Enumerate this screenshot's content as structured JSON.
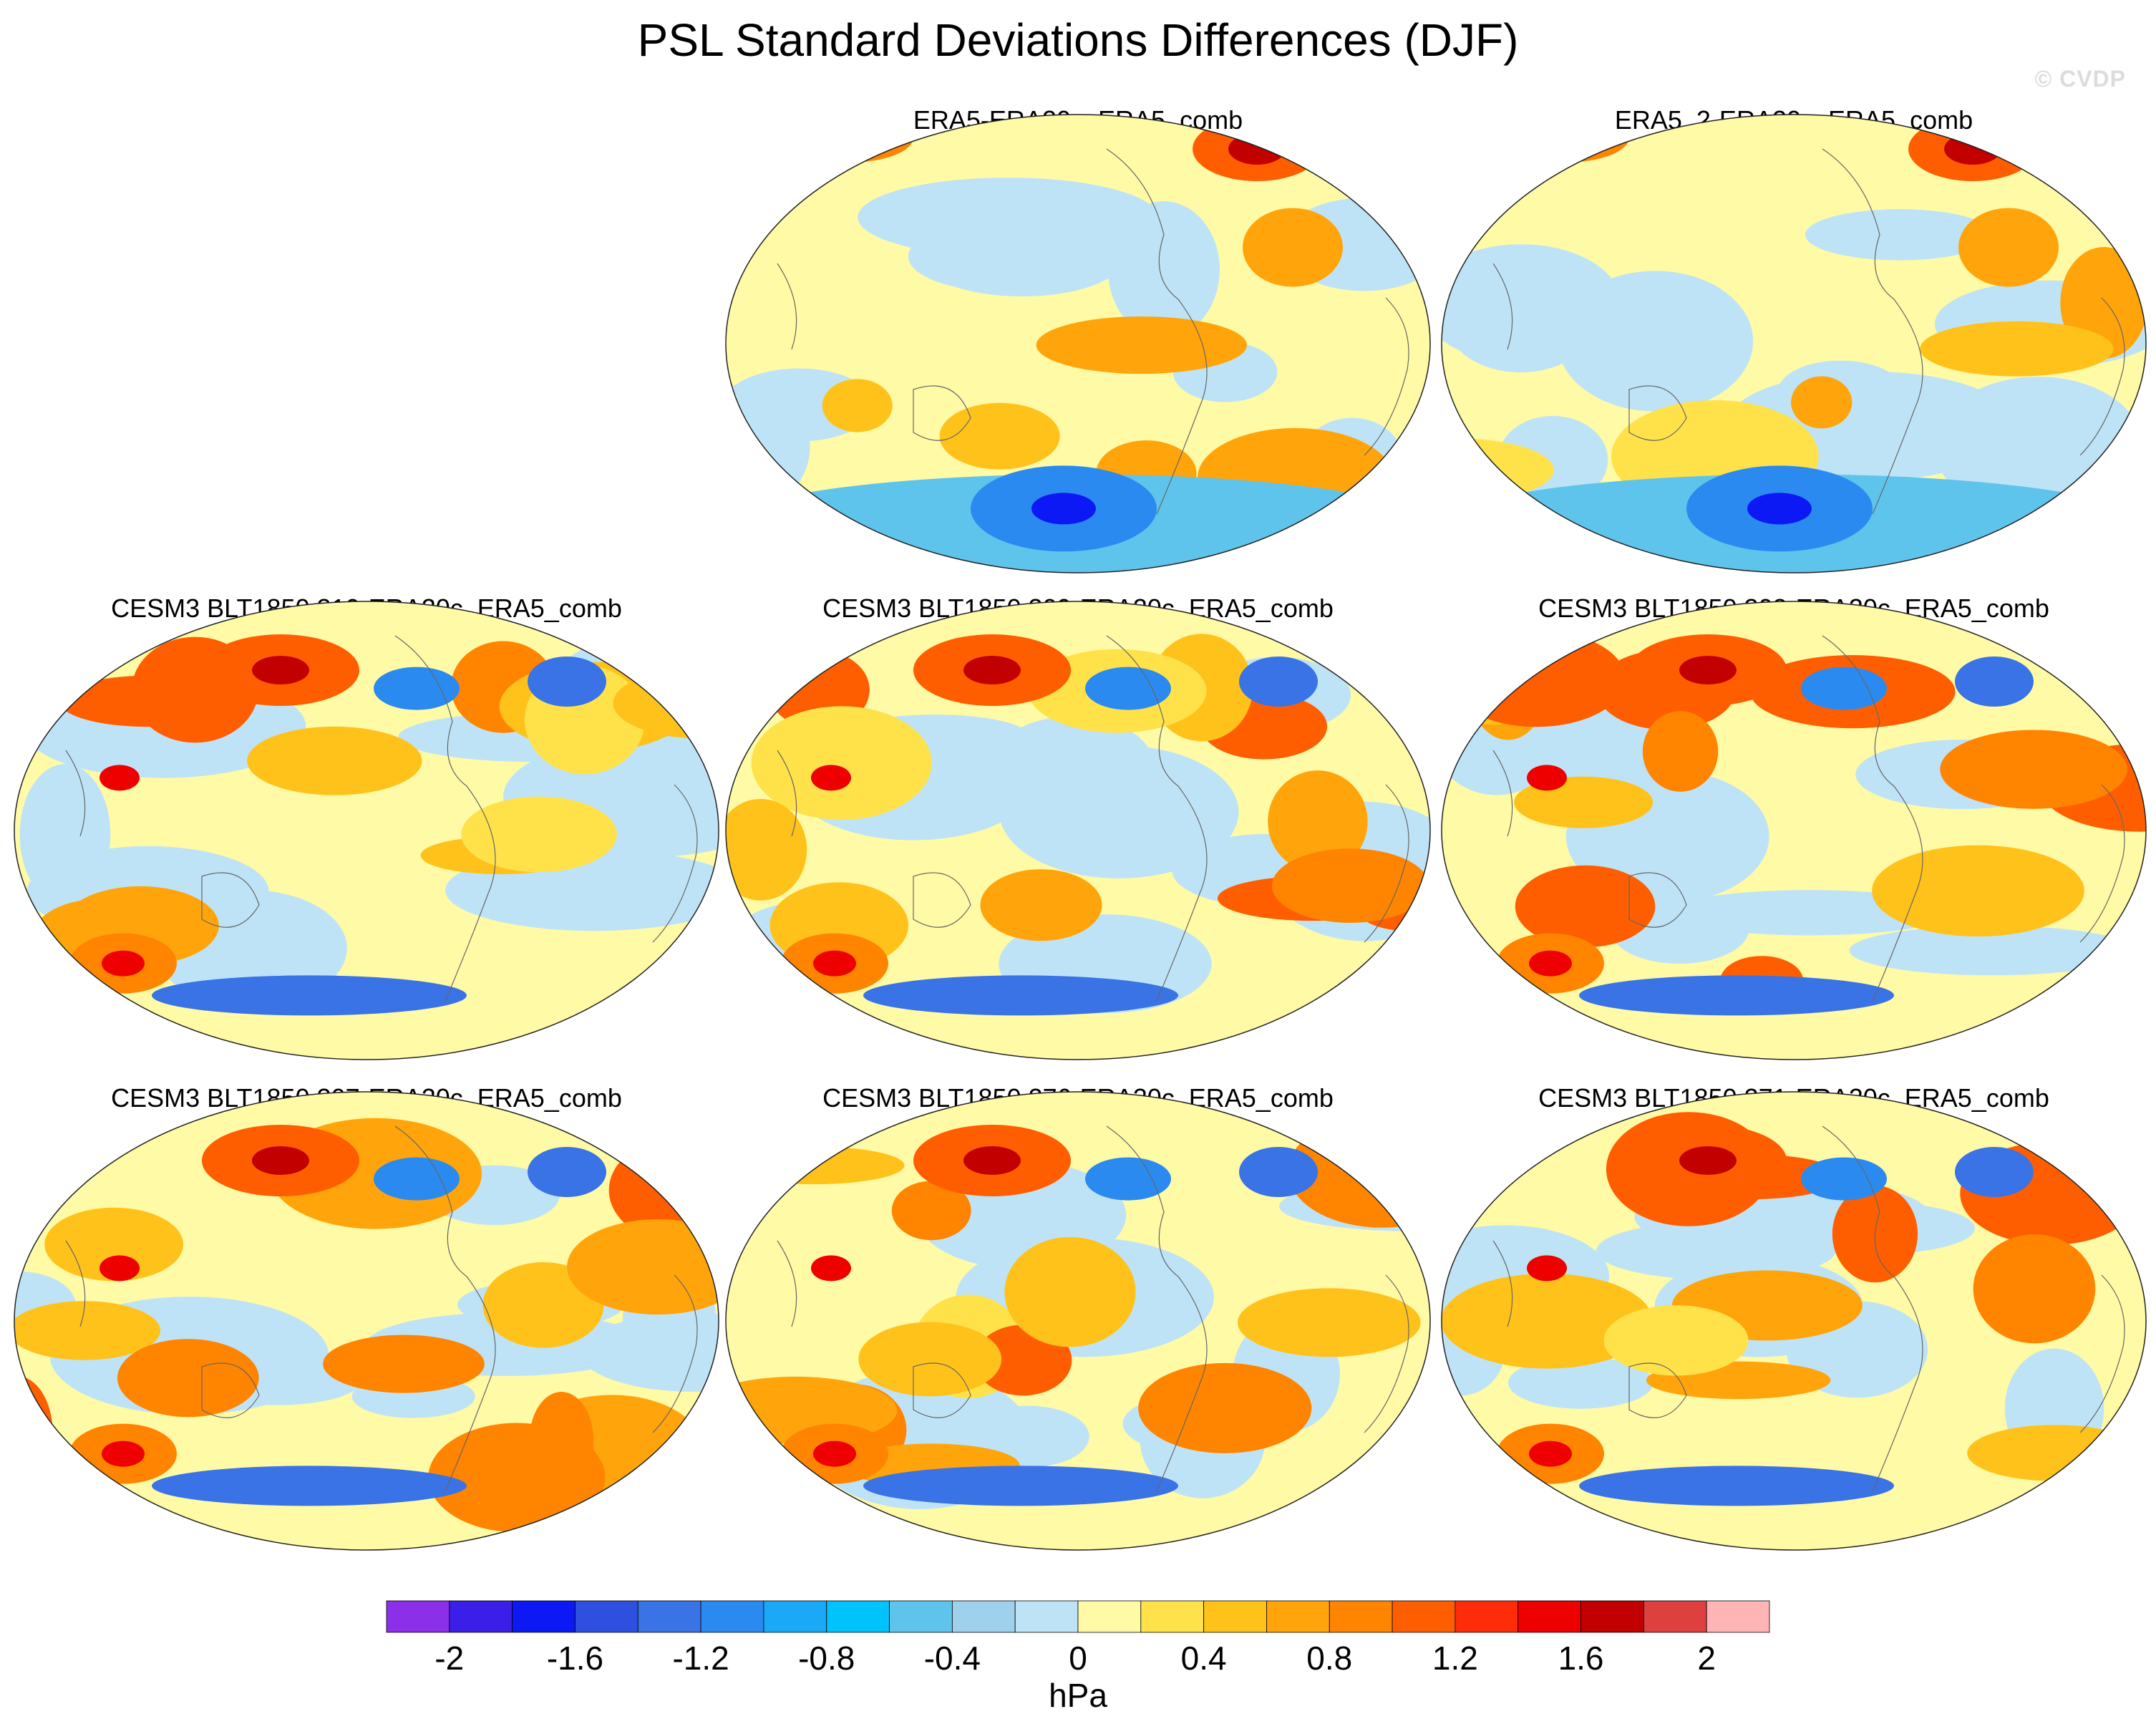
{
  "figure": {
    "title": "PSL Standard Deviations Differences (DJF)",
    "watermark": "© CVDP"
  },
  "chart_data": {
    "type": "heatmap",
    "title": "PSL Standard Deviations Differences (DJF)",
    "projection": "Robinson (global, centered on Pacific)",
    "panels": [
      {
        "name": "ERA5-ERA20c_ERA5_comb",
        "row": 1,
        "col": 2,
        "features": [
          "positive anomaly high northern latitudes (Europe / Arctic)",
          "strong negative anomaly Southern Ocean near 60S",
          "positive anomaly North Atlantic",
          "mostly near-zero tropics"
        ]
      },
      {
        "name": "ERA5_2-ERA20c_ERA5_comb",
        "row": 1,
        "col": 3,
        "features": [
          "positive anomaly high northern latitudes",
          "strong negative anomaly Southern Ocean",
          "positive anomaly North Atlantic",
          "mostly near-zero tropics"
        ]
      },
      {
        "name": "CESM3 BLT1850 310-ERA20c_ERA5_comb",
        "row": 2,
        "col": 1,
        "features": [
          "strong positive anomaly Eurasian Arctic",
          "negative anomaly North Pacific",
          "positive anomaly Southern Ocean",
          "positive anomaly South Indian Ocean"
        ]
      },
      {
        "name": "CESM3 BLT1850 309-ERA20c_ERA5_comb",
        "row": 2,
        "col": 2,
        "features": [
          "positive anomaly North Pacific",
          "negative anomaly Southern Ocean band",
          "positive anomaly South Indian Ocean"
        ]
      },
      {
        "name": "CESM3 BLT1850 308-ERA20c_ERA5_comb",
        "row": 2,
        "col": 3,
        "features": [
          "positive anomaly North Pacific",
          "negative anomaly North Atlantic",
          "positive anomaly South Indian Ocean",
          "negative anomaly Southern Ocean"
        ]
      },
      {
        "name": "CESM3 BLT1850 307-ERA20c_ERA5_comb",
        "row": 3,
        "col": 1,
        "features": [
          "positive anomaly North Pacific",
          "negative anomaly Northeast Pacific",
          "positive anomaly South Indian Ocean"
        ]
      },
      {
        "name": "CESM3 BLT1850 276-ERA20c_ERA5_comb",
        "row": 3,
        "col": 2,
        "features": [
          "positive anomaly North Pacific",
          "negative anomaly Northeast Pacific",
          "positive anomaly South Indian Ocean"
        ]
      },
      {
        "name": "CESM3 BLT1850 271-ERA20c_ERA5_comb",
        "row": 3,
        "col": 3,
        "features": [
          "positive anomaly North Pacific",
          "negative anomaly North Atlantic",
          "positive anomaly South Indian Ocean"
        ]
      }
    ],
    "colorbar": {
      "label": "hPa",
      "levels": [
        -2.2,
        -2.0,
        -1.8,
        -1.6,
        -1.4,
        -1.2,
        -1.0,
        -0.8,
        -0.6,
        -0.4,
        -0.2,
        0,
        0.2,
        0.4,
        0.6,
        0.8,
        1.0,
        1.2,
        1.4,
        1.6,
        1.8,
        2.0,
        2.2
      ],
      "tick_labels": [
        "-2",
        "-1.6",
        "-1.2",
        "-0.8",
        "-0.4",
        "0",
        "0.4",
        "0.8",
        "1.2",
        "1.6",
        "2"
      ],
      "tick_values": [
        -2,
        -1.6,
        -1.2,
        -0.8,
        -0.4,
        0,
        0.4,
        0.8,
        1.2,
        1.6,
        2
      ],
      "colors": [
        "#8b2fe9",
        "#3b1ee8",
        "#0d19f5",
        "#2e4fe0",
        "#3a73e6",
        "#2a8af0",
        "#19a9f7",
        "#00c3fb",
        "#5fc4ec",
        "#9fd0ec",
        "#bfe3f6",
        "#fffaa6",
        "#ffe24a",
        "#ffc21b",
        "#ffa40a",
        "#ff8400",
        "#ff5e00",
        "#ff2c0a",
        "#ef0000",
        "#c20000",
        "#de4040",
        "#ffb5b5"
      ]
    }
  }
}
